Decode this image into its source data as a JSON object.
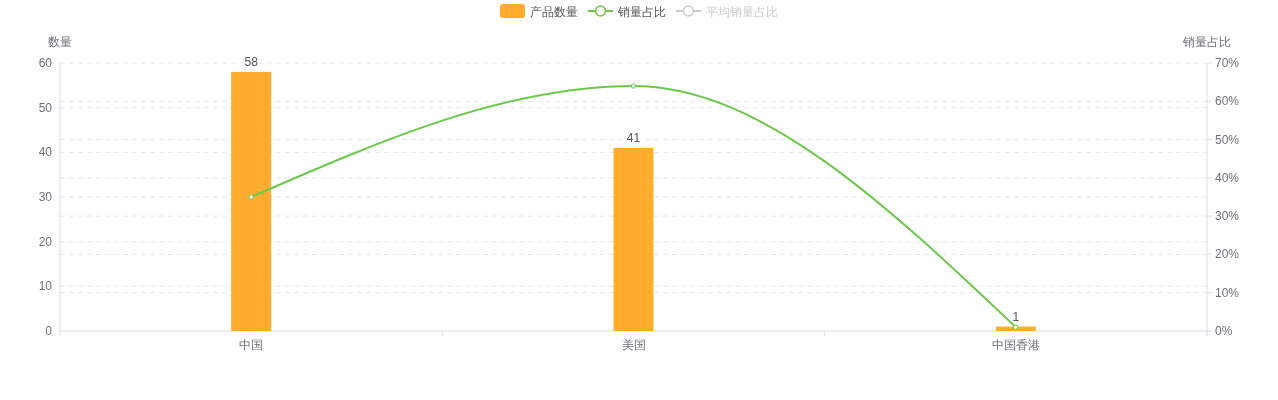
{
  "chart_data": {
    "type": "bar",
    "categories": [
      "中国",
      "美国",
      "中国香港"
    ],
    "ylabel": "数量",
    "y2label": "销量占比",
    "ylim": [
      0,
      60
    ],
    "yticks": [
      0,
      10,
      20,
      30,
      40,
      50,
      60
    ],
    "y2lim": [
      0,
      70
    ],
    "y2ticks": [
      {
        "value": 0,
        "label": "0%"
      },
      {
        "value": 10,
        "label": "10%"
      },
      {
        "value": 20,
        "label": "20%"
      },
      {
        "value": 30,
        "label": "30%"
      },
      {
        "value": 40,
        "label": "40%"
      },
      {
        "value": 50,
        "label": "50%"
      },
      {
        "value": 60,
        "label": "60%"
      },
      {
        "value": 70,
        "label": "70%"
      }
    ],
    "series": [
      {
        "name": "产品数量",
        "color": "#ffac2f",
        "values": [
          58,
          41,
          1
        ],
        "value_labels": [
          "58",
          "41",
          "1"
        ]
      },
      {
        "name": "销量占比",
        "type": "line",
        "axis": "y2",
        "color": "#6cc84a",
        "values": [
          35,
          64,
          1
        ]
      },
      {
        "name": "平均销量占比",
        "type": "line",
        "axis": "y2",
        "color": "#cccccc",
        "values": [
          null,
          null,
          null
        ]
      }
    ],
    "legend": "top",
    "grid": true,
    "marker": "circle"
  }
}
